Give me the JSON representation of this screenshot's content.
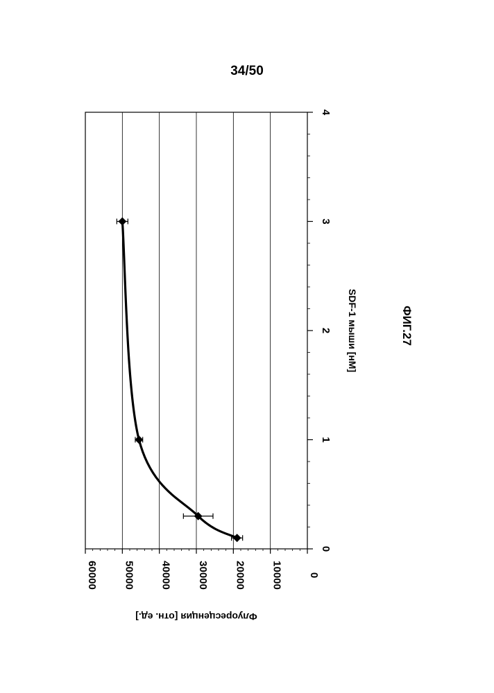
{
  "page": {
    "number": "34/50",
    "figure_label": "ФИГ.27"
  },
  "chart_data": {
    "type": "line",
    "xlabel": "SDF-1 мыши [нМ]",
    "ylabel": "Флуоресценция [отн. ед.]",
    "xlim": [
      0,
      4
    ],
    "ylim": [
      0,
      60000
    ],
    "x_ticks": [
      "0",
      "1",
      "2",
      "3",
      "4"
    ],
    "y_ticks": [
      "0",
      "10000",
      "20000",
      "30000",
      "40000",
      "50000",
      "60000"
    ],
    "grid": "horizontal",
    "orientation": "rotated 90° clockwise",
    "series": [
      {
        "x": [
          0.1,
          0.3,
          1,
          3
        ],
        "y": [
          19000,
          29500,
          45500,
          50000
        ],
        "error": [
          1500,
          4000,
          1000,
          1500
        ]
      }
    ]
  }
}
